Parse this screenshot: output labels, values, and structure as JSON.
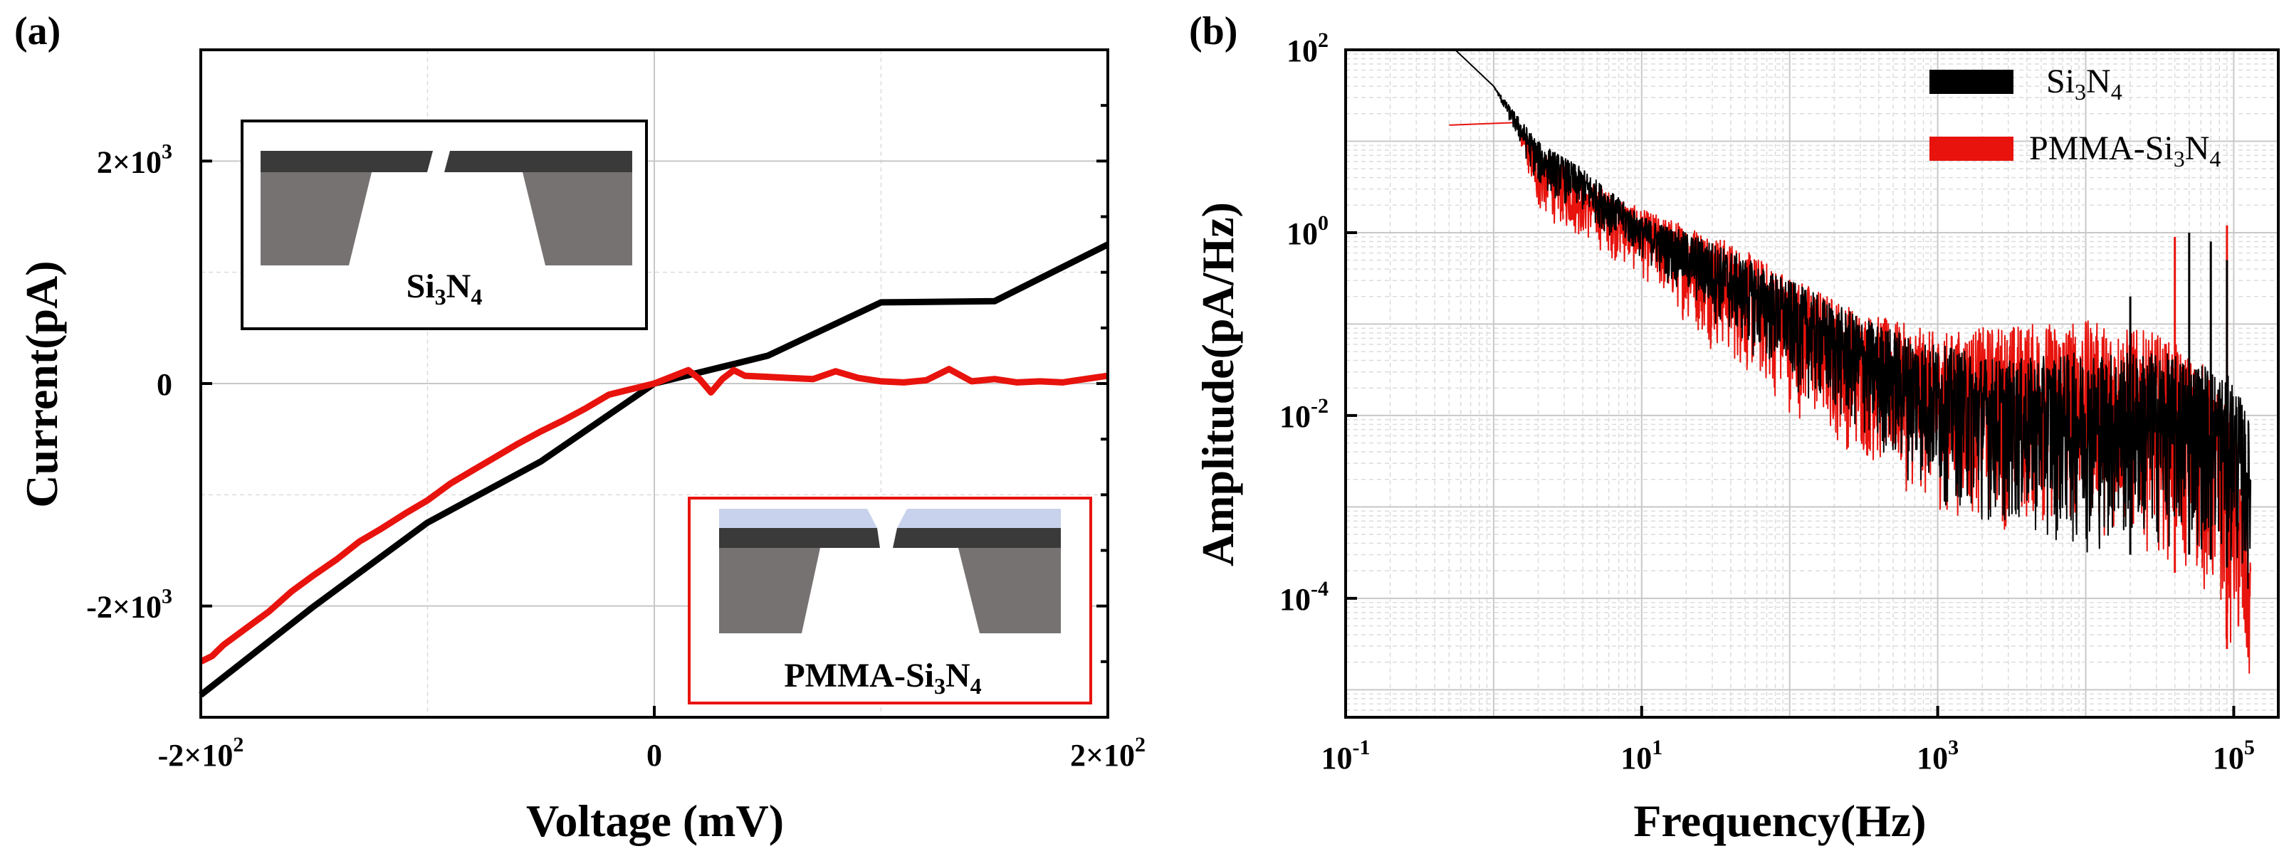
{
  "chart_data": [
    {
      "panel": "(a)",
      "type": "line",
      "title": "",
      "xlabel": "Voltage (mV)",
      "ylabel": "Current(pA)",
      "xlim": [
        -200,
        200
      ],
      "ylim": [
        -3000,
        3000
      ],
      "grid": true,
      "x_ticks": [
        {
          "value": -200,
          "base": "-2×10",
          "exp": "2"
        },
        {
          "value": 0,
          "base": "0",
          "exp": ""
        },
        {
          "value": 200,
          "base": "2×10",
          "exp": "2"
        }
      ],
      "y_ticks": [
        {
          "value": -2000,
          "base": "-2×10",
          "exp": "3"
        },
        {
          "value": 0,
          "base": "0",
          "exp": ""
        },
        {
          "value": 2000,
          "base": "2×10",
          "exp": "3"
        }
      ],
      "series": [
        {
          "name": "Si3N4",
          "color": "#000000",
          "x": [
            -200,
            -150,
            -100,
            -50,
            0,
            50,
            100,
            150,
            200
          ],
          "y": [
            -2800,
            -2000,
            -1250,
            -700,
            0,
            250,
            730,
            740,
            1250
          ]
        },
        {
          "name": "PMMA-Si3N4",
          "color": "#e8130d",
          "x": [
            -200,
            -195,
            -190,
            -180,
            -170,
            -160,
            -150,
            -140,
            -130,
            -120,
            -110,
            -100,
            -90,
            -80,
            -70,
            -60,
            -50,
            -40,
            -30,
            -20,
            -10,
            0,
            10,
            15,
            20,
            25,
            30,
            35,
            40,
            50,
            60,
            70,
            80,
            90,
            100,
            110,
            120,
            130,
            140,
            150,
            160,
            170,
            180,
            190,
            200
          ],
          "y": [
            -2500,
            -2450,
            -2350,
            -2200,
            -2050,
            -1870,
            -1720,
            -1580,
            -1420,
            -1300,
            -1170,
            -1050,
            -900,
            -780,
            -660,
            -540,
            -430,
            -330,
            -220,
            -100,
            -50,
            0,
            80,
            120,
            40,
            -80,
            40,
            120,
            70,
            60,
            50,
            40,
            110,
            50,
            20,
            10,
            30,
            130,
            20,
            40,
            10,
            20,
            10,
            40,
            70
          ]
        }
      ],
      "insets": [
        {
          "label_base": "Si",
          "label_sub1": "3",
          "label_mid": "N",
          "label_sub2": "4",
          "type": "membrane"
        },
        {
          "label_base": "PMMA-Si",
          "label_sub1": "3",
          "label_mid": "N",
          "label_sub2": "4",
          "type": "coated-membrane"
        }
      ]
    },
    {
      "panel": "(b)",
      "type": "line",
      "scale": "log-log",
      "title": "",
      "xlabel": "Frequency(Hz)",
      "ylabel": "Amplitude(pA/Hz)",
      "xlim": [
        0.1,
        200000
      ],
      "ylim": [
        5e-06,
        100
      ],
      "grid": true,
      "x_ticks": [
        {
          "value": 0.1,
          "base": "10",
          "exp": "-1"
        },
        {
          "value": 10,
          "base": "10",
          "exp": "1"
        },
        {
          "value": 1000,
          "base": "10",
          "exp": "3"
        },
        {
          "value": 100000,
          "base": "10",
          "exp": "5"
        }
      ],
      "y_ticks": [
        {
          "value": 100,
          "base": "10",
          "exp": "2"
        },
        {
          "value": 1,
          "base": "10",
          "exp": "0"
        },
        {
          "value": 0.01,
          "base": "10",
          "exp": "-2"
        },
        {
          "value": 0.0001,
          "base": "10",
          "exp": "-4"
        }
      ],
      "legend_position": "top-right",
      "series": [
        {
          "name": "Si3N4",
          "legend_base": "Si",
          "legend_sub1": "3",
          "legend_mid": "N",
          "legend_sub2": "4",
          "color": "#000000",
          "envelope_upper": [
            [
              0.55,
              100
            ],
            [
              1,
              40
            ],
            [
              2,
              10
            ],
            [
              4,
              5
            ],
            [
              10,
              1.5
            ],
            [
              30,
              0.8
            ],
            [
              100,
              0.3
            ],
            [
              300,
              0.12
            ],
            [
              1000,
              0.06
            ],
            [
              3000,
              0.04
            ],
            [
              10000,
              0.05
            ],
            [
              30000,
              0.05
            ],
            [
              60000,
              0.04
            ],
            [
              100000,
              0.025
            ],
            [
              130000,
              0.008
            ]
          ],
          "envelope_lower": [
            [
              0.55,
              100
            ],
            [
              1,
              40
            ],
            [
              2,
              3
            ],
            [
              4,
              1.5
            ],
            [
              10,
              0.5
            ],
            [
              30,
              0.1
            ],
            [
              100,
              0.02
            ],
            [
              300,
              0.005
            ],
            [
              1000,
              0.001
            ],
            [
              3000,
              0.0005
            ],
            [
              10000,
              0.0003
            ],
            [
              30000,
              0.0003
            ],
            [
              60000,
              0.0003
            ],
            [
              100000,
              0.0002
            ],
            [
              130000,
              0.0001
            ]
          ],
          "spikes": [
            [
              20000,
              0.2
            ],
            [
              50000,
              1.0
            ],
            [
              70000,
              0.8
            ],
            [
              90000,
              0.5
            ]
          ]
        },
        {
          "name": "PMMA-Si3N4",
          "legend_base": "PMMA-Si",
          "legend_sub1": "3",
          "legend_mid": "N",
          "legend_sub2": "4",
          "color": "#e8130d",
          "envelope_upper": [
            [
              0.5,
              15
            ],
            [
              1.4,
              16
            ],
            [
              2,
              8
            ],
            [
              4,
              4
            ],
            [
              10,
              1.8
            ],
            [
              30,
              1.0
            ],
            [
              100,
              0.35
            ],
            [
              300,
              0.14
            ],
            [
              1000,
              0.08
            ],
            [
              3000,
              0.1
            ],
            [
              10000,
              0.11
            ],
            [
              30000,
              0.08
            ],
            [
              60000,
              0.04
            ],
            [
              100000,
              0.01
            ],
            [
              130000,
              0.0003
            ]
          ],
          "envelope_lower": [
            [
              0.5,
              15
            ],
            [
              1.4,
              16
            ],
            [
              2,
              1.5
            ],
            [
              4,
              0.8
            ],
            [
              10,
              0.3
            ],
            [
              30,
              0.05
            ],
            [
              100,
              0.01
            ],
            [
              300,
              0.003
            ],
            [
              1000,
              0.0008
            ],
            [
              3000,
              0.0005
            ],
            [
              10000,
              0.0005
            ],
            [
              30000,
              0.0003
            ],
            [
              60000,
              0.0001
            ],
            [
              100000,
              2e-05
            ],
            [
              130000,
              6e-06
            ]
          ],
          "spikes": [
            [
              40000,
              0.9
            ],
            [
              90000,
              1.2
            ]
          ]
        }
      ]
    }
  ]
}
